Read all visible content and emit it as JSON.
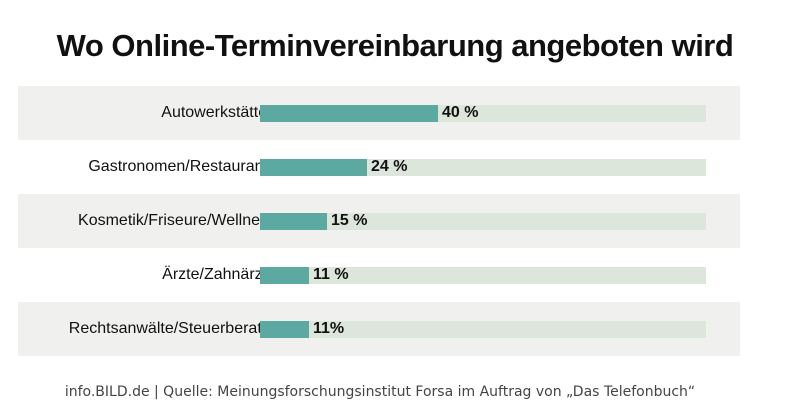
{
  "header": {
    "title": "Wo Online-Terminvereinbarung angeboten wird"
  },
  "chart_data": {
    "type": "bar",
    "orientation": "horizontal",
    "categories": [
      "Autowerkstätten",
      "Gastronomen/Restaurants",
      "Kosmetik/Friseure/Wellness",
      "Ärzte/Zahnärzte",
      "Rechtsanwälte/Steuerberater"
    ],
    "values": [
      40,
      24,
      15,
      11,
      11
    ],
    "value_labels": [
      "40 %",
      "24 %",
      "15 %",
      "11 %",
      "11%"
    ],
    "xlim": [
      0,
      100
    ],
    "grid": false,
    "legend": "none",
    "colors": {
      "bar": "#5ba9a0",
      "track": "#dde6db",
      "row_shade": "#f0f0ef"
    }
  },
  "footer": {
    "source": "info.BILD.de | Quelle: Meinungsforschungsinstitut Forsa im Auftrag von „Das Telefonbuch“"
  }
}
